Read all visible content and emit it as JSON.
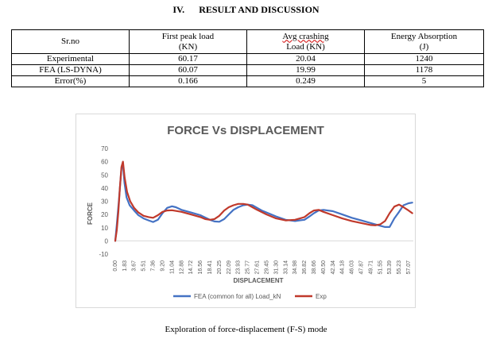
{
  "section": {
    "number": "IV.",
    "title": "RESULT AND DISCUSSION"
  },
  "table": {
    "headers": [
      {
        "line1": "Sr.no",
        "line2": ""
      },
      {
        "line1": "First peak load",
        "line2": "(KN)"
      },
      {
        "line1": "Avg crashing",
        "line2": "Load (KN)"
      },
      {
        "line1": "Energy Absorption",
        "line2": "(J)"
      }
    ],
    "rows": [
      {
        "label": "Experimental",
        "peak": "60.17",
        "avg": "20.04",
        "energy": "1240"
      },
      {
        "label": "FEA (LS-DYNA)",
        "peak": "60.07",
        "avg": "19.99",
        "energy": "1178"
      },
      {
        "label": "Error(%)",
        "peak": "0.166",
        "avg": "0.249",
        "energy": "5"
      }
    ]
  },
  "chart_data": {
    "type": "line",
    "title": "FORCE Vs DISPLACEMENT",
    "xlabel": "DISPLACEMENT",
    "ylabel": "FORCE",
    "ylim": [
      -10,
      70
    ],
    "yticks": [
      -10,
      0,
      10,
      20,
      30,
      40,
      50,
      60,
      70
    ],
    "xlim": [
      0,
      58.0
    ],
    "xtick_labels": [
      "0.00",
      "1.83",
      "3.67",
      "5.51",
      "7.36",
      "9.20",
      "11.04",
      "12.88",
      "14.72",
      "16.56",
      "18.41",
      "20.25",
      "22.09",
      "23.93",
      "25.77",
      "27.61",
      "29.45",
      "31.30",
      "33.14",
      "34.98",
      "36.82",
      "38.66",
      "40.50",
      "42.34",
      "44.18",
      "46.03",
      "47.87",
      "49.71",
      "51.55",
      "53.39",
      "55.23",
      "57.07"
    ],
    "xtick_values": [
      0.0,
      1.83,
      3.67,
      5.51,
      7.36,
      9.2,
      11.04,
      12.88,
      14.72,
      16.56,
      18.41,
      20.25,
      22.09,
      23.93,
      25.77,
      27.61,
      29.45,
      31.3,
      33.14,
      34.98,
      36.82,
      38.66,
      40.5,
      42.34,
      44.18,
      46.03,
      47.87,
      49.71,
      51.55,
      53.39,
      55.23,
      57.07
    ],
    "grid": false,
    "legend_position": "bottom",
    "series": [
      {
        "name": "FEA (common for all) Load_kN",
        "color": "#4472c4",
        "x": [
          0,
          0.3,
          0.7,
          1.0,
          1.2,
          1.5,
          1.8,
          2.2,
          2.8,
          3.67,
          4.5,
          5.51,
          6.5,
          7.36,
          8.3,
          9.2,
          10.1,
          11.04,
          11.8,
          12.88,
          14.72,
          16.56,
          18.41,
          19.3,
          20.25,
          21.2,
          22.09,
          23.0,
          23.93,
          24.9,
          25.77,
          26.7,
          27.61,
          28.5,
          29.45,
          31.3,
          33.14,
          34.98,
          36.82,
          37.8,
          38.66,
          39.6,
          40.5,
          42.34,
          44.18,
          46.03,
          47.87,
          49.71,
          51.55,
          52.5,
          53.39,
          54.3,
          55.23,
          56.1,
          57.07,
          57.8
        ],
        "y": [
          0,
          12,
          30,
          45,
          55,
          58,
          44,
          33,
          27,
          23,
          19.5,
          17,
          15.5,
          14.3,
          16,
          21,
          25,
          26.2,
          25.5,
          23.5,
          21.5,
          19.5,
          16,
          14.7,
          14.5,
          16.5,
          20,
          23.5,
          25.5,
          27,
          27.5,
          27,
          25,
          23,
          21.5,
          18.5,
          16,
          15,
          16,
          18.5,
          21,
          23,
          23.5,
          22.5,
          20,
          17.5,
          15.5,
          13.5,
          11.5,
          10.5,
          10.5,
          17,
          22,
          27,
          28.5,
          29
        ]
      },
      {
        "name": "Exp",
        "color": "#c0392b",
        "x": [
          0,
          0.3,
          0.6,
          0.9,
          1.2,
          1.5,
          1.83,
          2.3,
          2.9,
          3.67,
          4.5,
          5.51,
          6.5,
          7.36,
          8.3,
          9.2,
          10.1,
          11.04,
          12.88,
          14.72,
          16.56,
          17.5,
          18.41,
          19.3,
          20.25,
          21.2,
          22.09,
          23.0,
          23.93,
          24.9,
          25.77,
          26.7,
          27.61,
          29.45,
          31.3,
          33.14,
          34.98,
          36.82,
          37.8,
          38.66,
          39.6,
          40.5,
          42.34,
          44.18,
          46.03,
          47.87,
          49.71,
          50.6,
          51.55,
          52.5,
          53.39,
          54.3,
          55.23,
          56.1,
          57.07,
          57.8
        ],
        "y": [
          0,
          8,
          22,
          40,
          56,
          60,
          48,
          37,
          30,
          25,
          21.5,
          19,
          18,
          17.5,
          19.5,
          22,
          23,
          23.2,
          22,
          20,
          18,
          16.5,
          16,
          16.5,
          19,
          23,
          25.5,
          27,
          28,
          28,
          27.5,
          25.5,
          23.5,
          20,
          17,
          15.5,
          16,
          18,
          21,
          23,
          23.5,
          22,
          19.5,
          17,
          15,
          13.5,
          12,
          11.8,
          12.5,
          15,
          21,
          26,
          27.5,
          25.5,
          23,
          21
        ]
      }
    ]
  },
  "caption": "Exploration of force-displacement (F-S) mode"
}
